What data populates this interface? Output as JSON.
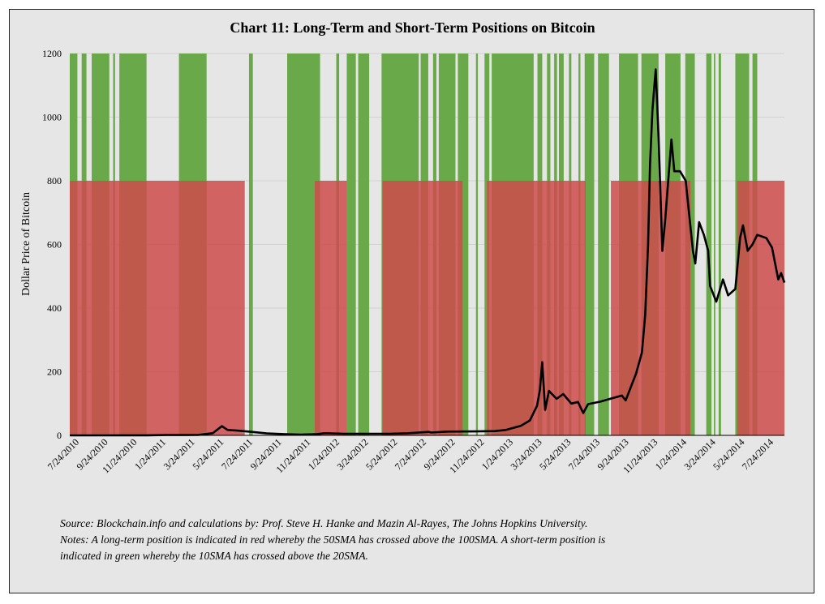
{
  "chart_data": {
    "type": "line",
    "title": "Chart 11: Long-Term and Short-Term Positions on Bitcoin",
    "ylabel": "Dollar Price of Bitcoin",
    "xlabel": "",
    "ylim": [
      0,
      1200
    ],
    "yticks": [
      0,
      200,
      400,
      600,
      800,
      1000,
      1200
    ],
    "grid": true,
    "xtick_labels": [
      "7/24/2010",
      "9/24/2010",
      "11/24/2010",
      "1/24/2011",
      "3/24/2011",
      "5/24/2011",
      "7/24/2011",
      "9/24/2011",
      "11/24/2011",
      "1/24/2012",
      "3/24/2012",
      "5/24/2012",
      "7/24/2012",
      "9/24/2012",
      "11/24/2012",
      "1/24/2013",
      "3/24/2013",
      "5/24/2013",
      "7/24/2013",
      "9/24/2013",
      "11/24/2013",
      "1/24/2014",
      "3/24/2014",
      "5/24/2014",
      "7/24/2014"
    ],
    "series": [
      {
        "values": [
          [
            "2010-07-24",
            0.06
          ],
          [
            "2010-10-01",
            0.06
          ],
          [
            "2010-11-10",
            0.25
          ],
          [
            "2011-01-01",
            0.3
          ],
          [
            "2011-02-10",
            1.0
          ],
          [
            "2011-03-24",
            0.9
          ],
          [
            "2011-04-20",
            1.5
          ],
          [
            "2011-05-20",
            7
          ],
          [
            "2011-06-08",
            29
          ],
          [
            "2011-06-20",
            17
          ],
          [
            "2011-07-10",
            15
          ],
          [
            "2011-08-10",
            11
          ],
          [
            "2011-09-10",
            6
          ],
          [
            "2011-10-15",
            4
          ],
          [
            "2011-11-20",
            2.3
          ],
          [
            "2011-12-25",
            4
          ],
          [
            "2012-01-10",
            7
          ],
          [
            "2012-02-20",
            5
          ],
          [
            "2012-04-01",
            5
          ],
          [
            "2012-05-24",
            5.2
          ],
          [
            "2012-07-01",
            6.6
          ],
          [
            "2012-08-15",
            11
          ],
          [
            "2012-08-20",
            9
          ],
          [
            "2012-09-24",
            12
          ],
          [
            "2012-11-24",
            12.5
          ],
          [
            "2013-01-01",
            13.5
          ],
          [
            "2013-01-24",
            17
          ],
          [
            "2013-02-24",
            30
          ],
          [
            "2013-03-15",
            47
          ],
          [
            "2013-03-30",
            93
          ],
          [
            "2013-04-05",
            142
          ],
          [
            "2013-04-10",
            230
          ],
          [
            "2013-04-16",
            80
          ],
          [
            "2013-04-24",
            140
          ],
          [
            "2013-05-10",
            115
          ],
          [
            "2013-05-24",
            130
          ],
          [
            "2013-06-10",
            100
          ],
          [
            "2013-06-24",
            105
          ],
          [
            "2013-07-05",
            70
          ],
          [
            "2013-07-15",
            98
          ],
          [
            "2013-08-10",
            106
          ],
          [
            "2013-08-24",
            112
          ],
          [
            "2013-09-24",
            125
          ],
          [
            "2013-10-02",
            110
          ],
          [
            "2013-10-24",
            195
          ],
          [
            "2013-11-05",
            260
          ],
          [
            "2013-11-12",
            380
          ],
          [
            "2013-11-18",
            600
          ],
          [
            "2013-11-22",
            850
          ],
          [
            "2013-11-27",
            1020
          ],
          [
            "2013-12-04",
            1150
          ],
          [
            "2013-12-10",
            940
          ],
          [
            "2013-12-18",
            580
          ],
          [
            "2013-12-24",
            680
          ],
          [
            "2014-01-06",
            930
          ],
          [
            "2014-01-12",
            830
          ],
          [
            "2014-01-24",
            830
          ],
          [
            "2014-02-05",
            800
          ],
          [
            "2014-02-20",
            580
          ],
          [
            "2014-02-25",
            540
          ],
          [
            "2014-03-05",
            670
          ],
          [
            "2014-03-15",
            630
          ],
          [
            "2014-03-24",
            580
          ],
          [
            "2014-03-28",
            470
          ],
          [
            "2014-04-10",
            420
          ],
          [
            "2014-04-24",
            490
          ],
          [
            "2014-05-05",
            440
          ],
          [
            "2014-05-20",
            460
          ],
          [
            "2014-05-30",
            620
          ],
          [
            "2014-06-05",
            660
          ],
          [
            "2014-06-15",
            580
          ],
          [
            "2014-06-25",
            600
          ],
          [
            "2014-07-05",
            630
          ],
          [
            "2014-07-24",
            620
          ],
          [
            "2014-08-05",
            590
          ],
          [
            "2014-08-18",
            490
          ],
          [
            "2014-08-24",
            510
          ],
          [
            "2014-08-31",
            480
          ]
        ]
      }
    ],
    "long_term_periods": [
      [
        "2010-07-24",
        "2011-07-26"
      ],
      [
        "2011-12-20",
        "2012-02-25"
      ],
      [
        "2012-05-10",
        "2012-10-25"
      ],
      [
        "2012-12-15",
        "2013-07-10"
      ],
      [
        "2013-09-01",
        "2014-02-15"
      ],
      [
        "2014-05-24",
        "2014-08-31"
      ]
    ],
    "long_term_level": 800,
    "short_term_periods": [
      [
        "2010-07-24",
        "2010-08-09"
      ],
      [
        "2010-08-18",
        "2010-08-28"
      ],
      [
        "2010-09-08",
        "2010-10-15"
      ],
      [
        "2010-10-23",
        "2010-10-27"
      ],
      [
        "2010-11-05",
        "2011-01-01"
      ],
      [
        "2011-03-10",
        "2011-05-07"
      ],
      [
        "2011-08-04",
        "2011-08-12"
      ],
      [
        "2011-10-23",
        "2011-12-31"
      ],
      [
        "2012-02-03",
        "2012-02-09"
      ],
      [
        "2012-02-25",
        "2012-03-15"
      ],
      [
        "2012-03-20",
        "2012-04-12"
      ],
      [
        "2012-05-08",
        "2012-07-25"
      ],
      [
        "2012-07-29",
        "2012-08-14"
      ],
      [
        "2012-08-24",
        "2012-08-31"
      ],
      [
        "2012-09-05",
        "2012-10-10"
      ],
      [
        "2012-10-15",
        "2012-11-06"
      ],
      [
        "2012-11-22",
        "2012-11-26"
      ],
      [
        "2012-12-10",
        "2012-12-20"
      ],
      [
        "2012-12-25",
        "2013-03-23"
      ],
      [
        "2013-03-31",
        "2013-04-10"
      ],
      [
        "2013-04-20",
        "2013-04-27"
      ],
      [
        "2013-05-05",
        "2013-05-11"
      ],
      [
        "2013-05-15",
        "2013-05-25"
      ],
      [
        "2013-06-05",
        "2013-06-10"
      ],
      [
        "2013-06-25",
        "2013-06-29"
      ],
      [
        "2013-07-08",
        "2013-07-28"
      ],
      [
        "2013-08-05",
        "2013-08-28"
      ],
      [
        "2013-09-18",
        "2013-10-28"
      ],
      [
        "2013-11-04",
        "2013-12-10"
      ],
      [
        "2013-12-24",
        "2014-01-25"
      ],
      [
        "2014-02-04",
        "2014-02-24"
      ],
      [
        "2014-03-20",
        "2014-03-31"
      ],
      [
        "2014-04-05",
        "2014-04-08"
      ],
      [
        "2014-04-15",
        "2014-04-20"
      ],
      [
        "2014-05-20",
        "2014-06-18"
      ],
      [
        "2014-06-25",
        "2014-07-05"
      ]
    ],
    "short_term_level": 1200,
    "colors": {
      "long_term": "#cd4b4b",
      "short_term": "#6aa94a",
      "price_line": "#000000",
      "background": "#e6e6e6"
    }
  },
  "notes": {
    "source": "Source: Blockchain.info and calculations by: Prof. Steve H. Hanke and Mazin Al-Rayes, The Johns Hopkins University.",
    "notes_line1": "Notes: A long-term position is indicated in red whereby the 50SMA has crossed above the 100SMA. A short-term position is",
    "notes_line2": "indicated in green whereby the 10SMA has crossed above the 20SMA."
  }
}
